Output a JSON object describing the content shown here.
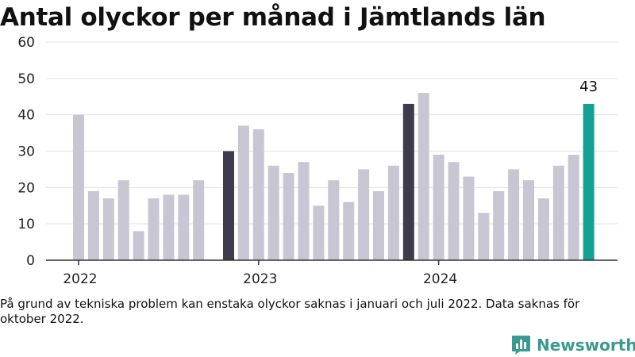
{
  "chart_data": {
    "type": "bar",
    "title": "Antal olyckor per månad i Jämtlands län",
    "xlabel": "",
    "ylabel": "",
    "ylim": [
      0,
      60
    ],
    "yticks": [
      0,
      10,
      20,
      30,
      40,
      50,
      60
    ],
    "grid": true,
    "year_labels": [
      {
        "label": "2022",
        "at_index": 0
      },
      {
        "label": "2023",
        "at_index": 12
      },
      {
        "label": "2024",
        "at_index": 24
      }
    ],
    "months": [
      {
        "year": 2022,
        "month": 1,
        "value": 40
      },
      {
        "year": 2022,
        "month": 2,
        "value": 19
      },
      {
        "year": 2022,
        "month": 3,
        "value": 17
      },
      {
        "year": 2022,
        "month": 4,
        "value": 22
      },
      {
        "year": 2022,
        "month": 5,
        "value": 8
      },
      {
        "year": 2022,
        "month": 6,
        "value": 17
      },
      {
        "year": 2022,
        "month": 7,
        "value": 18
      },
      {
        "year": 2022,
        "month": 8,
        "value": 18
      },
      {
        "year": 2022,
        "month": 9,
        "value": 22
      },
      {
        "year": 2022,
        "month": 10,
        "value": null
      },
      {
        "year": 2022,
        "month": 11,
        "value": 30
      },
      {
        "year": 2022,
        "month": 12,
        "value": 37
      },
      {
        "year": 2023,
        "month": 1,
        "value": 36
      },
      {
        "year": 2023,
        "month": 2,
        "value": 26
      },
      {
        "year": 2023,
        "month": 3,
        "value": 24
      },
      {
        "year": 2023,
        "month": 4,
        "value": 27
      },
      {
        "year": 2023,
        "month": 5,
        "value": 15
      },
      {
        "year": 2023,
        "month": 6,
        "value": 22
      },
      {
        "year": 2023,
        "month": 7,
        "value": 16
      },
      {
        "year": 2023,
        "month": 8,
        "value": 25
      },
      {
        "year": 2023,
        "month": 9,
        "value": 19
      },
      {
        "year": 2023,
        "month": 10,
        "value": 26
      },
      {
        "year": 2023,
        "month": 11,
        "value": 43
      },
      {
        "year": 2023,
        "month": 12,
        "value": 46
      },
      {
        "year": 2024,
        "month": 1,
        "value": 29
      },
      {
        "year": 2024,
        "month": 2,
        "value": 27
      },
      {
        "year": 2024,
        "month": 3,
        "value": 23
      },
      {
        "year": 2024,
        "month": 4,
        "value": 13
      },
      {
        "year": 2024,
        "month": 5,
        "value": 19
      },
      {
        "year": 2024,
        "month": 6,
        "value": 25
      },
      {
        "year": 2024,
        "month": 7,
        "value": 22
      },
      {
        "year": 2024,
        "month": 8,
        "value": 17
      },
      {
        "year": 2024,
        "month": 9,
        "value": 26
      },
      {
        "year": 2024,
        "month": 10,
        "value": 29
      },
      {
        "year": 2024,
        "month": 11,
        "value": 43
      }
    ],
    "dark_bars": [
      10,
      22
    ],
    "highlight_bar": 34,
    "highlight_label": "43",
    "colors": {
      "bar": "#c8c6d2",
      "bar_dark": "#3e3c4a",
      "bar_highlight": "#14a093",
      "grid": "#e2e2e2",
      "axis": "#333333"
    }
  },
  "footnote": "På grund av tekniska problem kan enstaka olyckor saknas i januari och juli 2022. Data saknas för oktober 2022.",
  "logo": {
    "text": "Newsworthy",
    "icon": "bar-chart-icon",
    "color": "#3b9a8f"
  }
}
